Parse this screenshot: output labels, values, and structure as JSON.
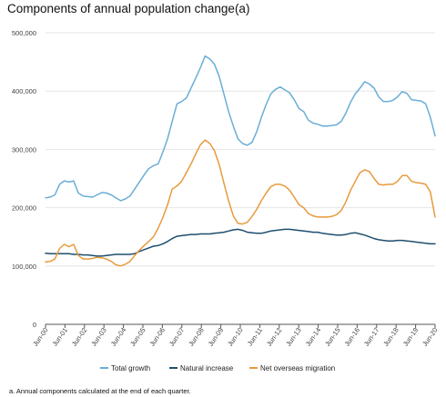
{
  "title": "Components of annual population change(a)",
  "footnote": "a. Annual components calculated at the end of each quarter.",
  "colors": {
    "total": "#6aaed6",
    "natural": "#1f4e6f",
    "nom": "#e89a3c",
    "grid": "#e6e6e6",
    "axis": "#555555"
  },
  "chart_data": {
    "type": "line",
    "title": "Components of annual population change(a)",
    "xlabel": "",
    "ylabel": "",
    "ylim": [
      0,
      500000
    ],
    "yticks": [
      "0",
      "100,000",
      "200,000",
      "300,000",
      "400,000",
      "500,000"
    ],
    "ytick_values": [
      0,
      100000,
      200000,
      300000,
      400000,
      500000
    ],
    "xticks": [
      "Jun-00",
      "Jun-01",
      "Jun-02",
      "Jun-03",
      "Jun-04",
      "Jun-05",
      "Jun-06",
      "Jun-07",
      "Jun-08",
      "Jun-09",
      "Jun-10",
      "Jun-11",
      "Jun-12",
      "Jun-13",
      "Jun-14",
      "Jun-15",
      "Jun-16",
      "Jun-17",
      "Jun-18",
      "Jun-19",
      "Jun-20"
    ],
    "grid": true,
    "legend_position": "bottom",
    "series": [
      {
        "name": "Total growth",
        "color": "#6aaed6",
        "values": [
          217000,
          218000,
          222000,
          240000,
          246000,
          244000,
          246000,
          225000,
          220000,
          219000,
          218000,
          222000,
          226000,
          225000,
          222000,
          217000,
          212000,
          215000,
          220000,
          232000,
          244000,
          256000,
          267000,
          272000,
          275000,
          295000,
          318000,
          348000,
          378000,
          382000,
          388000,
          405000,
          422000,
          440000,
          460000,
          455000,
          446000,
          425000,
          395000,
          365000,
          340000,
          318000,
          310000,
          307000,
          312000,
          330000,
          355000,
          377000,
          395000,
          403000,
          407000,
          402000,
          397000,
          385000,
          370000,
          365000,
          350000,
          345000,
          343000,
          340000,
          340000,
          341000,
          342000,
          348000,
          362000,
          381000,
          395000,
          405000,
          416000,
          412000,
          405000,
          390000,
          382000,
          382000,
          384000,
          390000,
          399000,
          396000,
          385000,
          384000,
          383000,
          378000,
          355000,
          323000
        ]
      },
      {
        "name": "Natural increase",
        "color": "#1f4e6f",
        "values": [
          122000,
          121000,
          121000,
          121000,
          121000,
          121000,
          120000,
          120000,
          119000,
          119000,
          118000,
          117000,
          117000,
          118000,
          119000,
          120000,
          120000,
          120000,
          120000,
          121000,
          125000,
          128000,
          131000,
          134000,
          135000,
          138000,
          142000,
          147000,
          151000,
          152000,
          153000,
          154000,
          154000,
          155000,
          155000,
          155000,
          156000,
          157000,
          158000,
          160000,
          162000,
          163000,
          161000,
          158000,
          157000,
          156000,
          156000,
          158000,
          160000,
          161000,
          162000,
          163000,
          163000,
          162000,
          161000,
          160000,
          159000,
          158000,
          158000,
          156000,
          155000,
          154000,
          153000,
          153000,
          154000,
          156000,
          157000,
          155000,
          153000,
          150000,
          147000,
          145000,
          144000,
          143000,
          143000,
          144000,
          144000,
          143000,
          142000,
          141000,
          140000,
          139000,
          138000,
          138000
        ]
      },
      {
        "name": "Net overseas migration",
        "color": "#e89a3c",
        "values": [
          107000,
          108000,
          112000,
          130000,
          137000,
          133000,
          137000,
          118000,
          112000,
          112000,
          113000,
          115000,
          114000,
          112000,
          108000,
          102000,
          100000,
          103000,
          108000,
          118000,
          127000,
          135000,
          142000,
          150000,
          165000,
          183000,
          205000,
          232000,
          237000,
          245000,
          260000,
          275000,
          292000,
          308000,
          316000,
          310000,
          298000,
          274000,
          242000,
          212000,
          186000,
          173000,
          172000,
          175000,
          185000,
          197000,
          212000,
          225000,
          236000,
          240000,
          240000,
          237000,
          230000,
          218000,
          205000,
          200000,
          190000,
          186000,
          184000,
          184000,
          184000,
          185000,
          188000,
          195000,
          210000,
          230000,
          245000,
          260000,
          265000,
          262000,
          250000,
          240000,
          239000,
          240000,
          240000,
          245000,
          255000,
          255000,
          245000,
          243000,
          242000,
          240000,
          227000,
          184000
        ]
      }
    ]
  }
}
